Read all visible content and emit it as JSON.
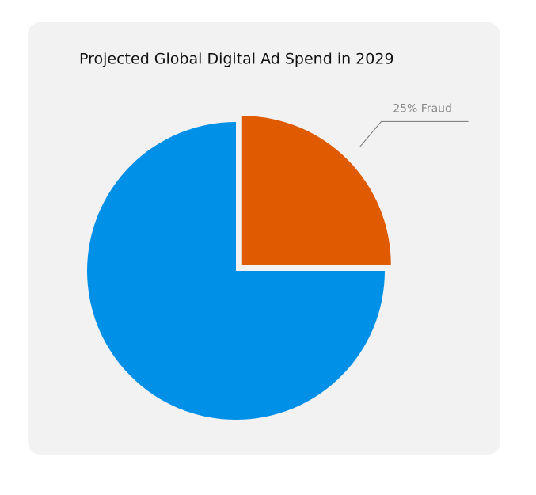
{
  "chart_data": {
    "type": "pie",
    "title": "Projected Global Digital Ad Spend in 2029",
    "values": [
      25,
      75
    ],
    "value_labels": [
      "25% Fraud",
      null
    ],
    "colors": [
      "#e05a00",
      "#0090e8"
    ]
  }
}
